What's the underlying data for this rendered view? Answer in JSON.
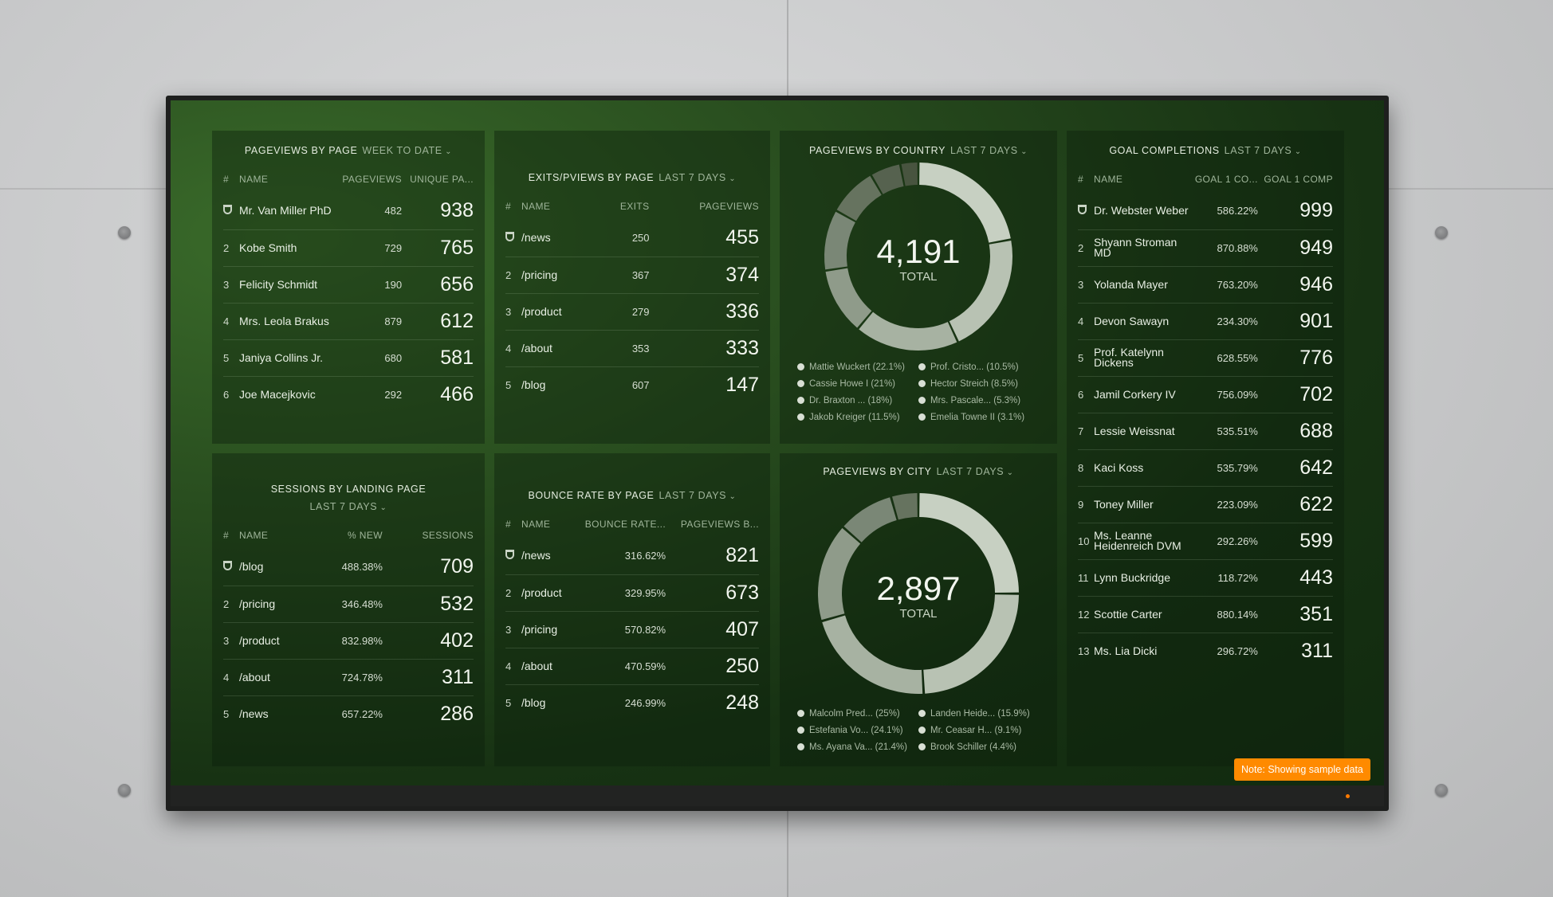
{
  "panels": {
    "pageviews_by_page": {
      "title": "PAGEVIEWS BY PAGE",
      "range": "WEEK TO DATE",
      "columns": [
        "#",
        "NAME",
        "PAGEVIEWS",
        "UNIQUE PA..."
      ],
      "rows": [
        {
          "rank": "",
          "name": "Mr. Van Miller PhD",
          "pageviews": "482",
          "unique": "938"
        },
        {
          "rank": "2",
          "name": "Kobe Smith",
          "pageviews": "729",
          "unique": "765"
        },
        {
          "rank": "3",
          "name": "Felicity Schmidt",
          "pageviews": "190",
          "unique": "656"
        },
        {
          "rank": "4",
          "name": "Mrs. Leola Brakus",
          "pageviews": "879",
          "unique": "612"
        },
        {
          "rank": "5",
          "name": "Janiya Collins Jr.",
          "pageviews": "680",
          "unique": "581"
        },
        {
          "rank": "6",
          "name": "Joe Macejkovic",
          "pageviews": "292",
          "unique": "466"
        }
      ]
    },
    "exits_by_page": {
      "title": "EXITS/PVIEWS BY PAGE",
      "range": "LAST 7 DAYS",
      "columns": [
        "#",
        "NAME",
        "EXITS",
        "PAGEVIEWS"
      ],
      "rows": [
        {
          "rank": "",
          "name": "/news",
          "exits": "250",
          "pageviews": "455"
        },
        {
          "rank": "2",
          "name": "/pricing",
          "exits": "367",
          "pageviews": "374"
        },
        {
          "rank": "3",
          "name": "/product",
          "exits": "279",
          "pageviews": "336"
        },
        {
          "rank": "4",
          "name": "/about",
          "exits": "353",
          "pageviews": "333"
        },
        {
          "rank": "5",
          "name": "/blog",
          "exits": "607",
          "pageviews": "147"
        }
      ]
    },
    "pageviews_by_country": {
      "title": "PAGEVIEWS BY COUNTRY",
      "range": "LAST 7 DAYS",
      "total": "4,191",
      "total_label": "TOTAL",
      "legend": [
        "Mattie Wuckert (22.1%)",
        "Prof. Cristo... (10.5%)",
        "Cassie Howe I (21%)",
        "Hector Streich (8.5%)",
        "Dr. Braxton ... (18%)",
        "Mrs. Pascale... (5.3%)",
        "Jakob Kreiger (11.5%)",
        "Emelia Towne II (3.1%)"
      ]
    },
    "goal_completions": {
      "title": "GOAL COMPLETIONS",
      "range": "LAST 7 DAYS",
      "columns": [
        "#",
        "NAME",
        "GOAL 1 CO...",
        "GOAL 1 COMP"
      ],
      "rows": [
        {
          "rank": "",
          "name": "Dr. Webster Weber",
          "rate": "586.22%",
          "comp": "999"
        },
        {
          "rank": "2",
          "name": "Shyann Stroman MD",
          "rate": "870.88%",
          "comp": "949"
        },
        {
          "rank": "3",
          "name": "Yolanda Mayer",
          "rate": "763.20%",
          "comp": "946"
        },
        {
          "rank": "4",
          "name": "Devon Sawayn",
          "rate": "234.30%",
          "comp": "901"
        },
        {
          "rank": "5",
          "name": "Prof. Katelynn Dickens",
          "rate": "628.55%",
          "comp": "776"
        },
        {
          "rank": "6",
          "name": "Jamil Corkery IV",
          "rate": "756.09%",
          "comp": "702"
        },
        {
          "rank": "7",
          "name": "Lessie Weissnat",
          "rate": "535.51%",
          "comp": "688"
        },
        {
          "rank": "8",
          "name": "Kaci Koss",
          "rate": "535.79%",
          "comp": "642"
        },
        {
          "rank": "9",
          "name": "Toney Miller",
          "rate": "223.09%",
          "comp": "622"
        },
        {
          "rank": "10",
          "name": "Ms. Leanne Heidenreich DVM",
          "rate": "292.26%",
          "comp": "599"
        },
        {
          "rank": "11",
          "name": "Lynn Buckridge",
          "rate": "118.72%",
          "comp": "443"
        },
        {
          "rank": "12",
          "name": "Scottie Carter",
          "rate": "880.14%",
          "comp": "351"
        },
        {
          "rank": "13",
          "name": "Ms. Lia Dicki",
          "rate": "296.72%",
          "comp": "311"
        }
      ]
    },
    "sessions_by_landing": {
      "title": "SESSIONS BY LANDING PAGE",
      "range": "LAST 7 DAYS",
      "columns": [
        "#",
        "NAME",
        "% NEW",
        "SESSIONS"
      ],
      "rows": [
        {
          "rank": "",
          "name": "/blog",
          "pct": "488.38%",
          "sessions": "709"
        },
        {
          "rank": "2",
          "name": "/pricing",
          "pct": "346.48%",
          "sessions": "532"
        },
        {
          "rank": "3",
          "name": "/product",
          "pct": "832.98%",
          "sessions": "402"
        },
        {
          "rank": "4",
          "name": "/about",
          "pct": "724.78%",
          "sessions": "311"
        },
        {
          "rank": "5",
          "name": "/news",
          "pct": "657.22%",
          "sessions": "286"
        }
      ]
    },
    "bounce_rate_by_page": {
      "title": "BOUNCE RATE BY PAGE",
      "range": "LAST 7 DAYS",
      "columns": [
        "#",
        "NAME",
        "BOUNCE RATE...",
        "PAGEVIEWS B..."
      ],
      "rows": [
        {
          "rank": "",
          "name": "/news",
          "rate": "316.62%",
          "pageviews": "821"
        },
        {
          "rank": "2",
          "name": "/product",
          "rate": "329.95%",
          "pageviews": "673"
        },
        {
          "rank": "3",
          "name": "/pricing",
          "rate": "570.82%",
          "pageviews": "407"
        },
        {
          "rank": "4",
          "name": "/about",
          "rate": "470.59%",
          "pageviews": "250"
        },
        {
          "rank": "5",
          "name": "/blog",
          "rate": "246.99%",
          "pageviews": "248"
        }
      ]
    },
    "pageviews_by_city": {
      "title": "PAGEVIEWS BY CITY",
      "range": "LAST 7 DAYS",
      "total": "2,897",
      "total_label": "TOTAL",
      "legend": [
        "Malcolm Pred... (25%)",
        "Landen Heide... (15.9%)",
        "Estefania Vo... (24.1%)",
        "Mr. Ceasar H... (9.1%)",
        "Ms. Ayana Va... (21.4%)",
        "Brook Schiller (4.4%)"
      ]
    }
  },
  "note": "Note: Showing sample data",
  "colors": {
    "donut_shades": [
      "#c7d0c2",
      "#b8c2b3",
      "#a7b2a2",
      "#8f9b8a",
      "#7a8776",
      "#66735f",
      "#56624f",
      "#48543f"
    ],
    "note_bg": "#ff8a00"
  },
  "chart_data": [
    {
      "type": "pie",
      "title": "PAGEVIEWS BY COUNTRY",
      "categories": [
        "Mattie Wuckert",
        "Cassie Howe I",
        "Dr. Braxton ...",
        "Jakob Kreiger",
        "Prof. Cristo...",
        "Hector Streich",
        "Mrs. Pascale...",
        "Emelia Towne II"
      ],
      "values": [
        22.1,
        21,
        18,
        11.5,
        10.5,
        8.5,
        5.3,
        3.1
      ],
      "total": 4191
    },
    {
      "type": "pie",
      "title": "PAGEVIEWS BY CITY",
      "categories": [
        "Malcolm Pred...",
        "Estefania Vo...",
        "Ms. Ayana Va...",
        "Landen Heide...",
        "Mr. Ceasar H...",
        "Brook Schiller"
      ],
      "values": [
        25,
        24.1,
        21.4,
        15.9,
        9.1,
        4.4
      ],
      "total": 2897
    }
  ]
}
